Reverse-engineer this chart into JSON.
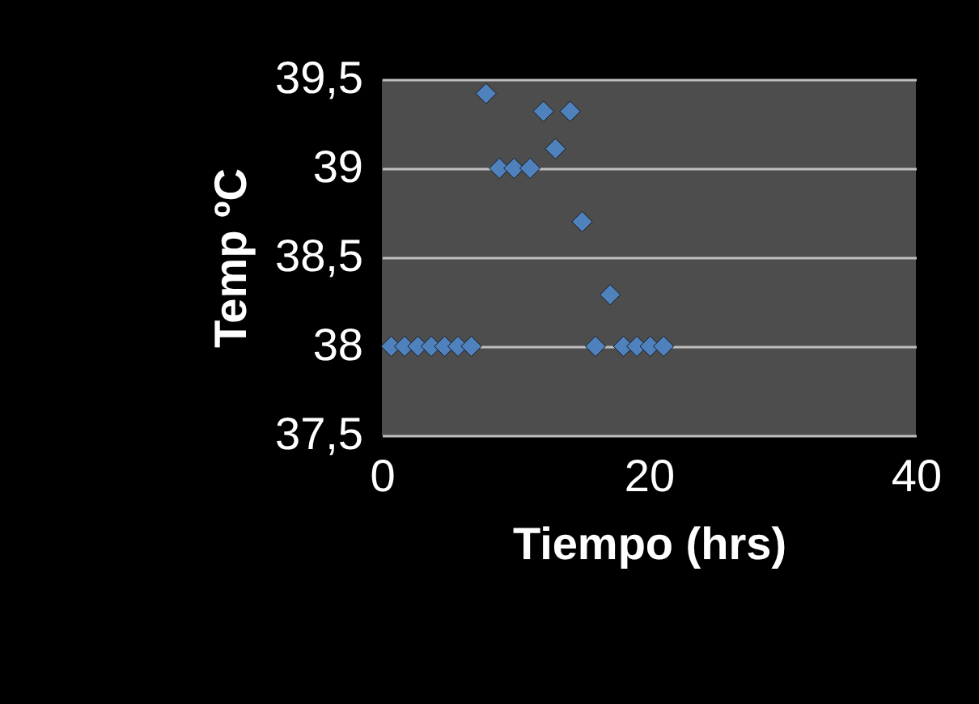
{
  "chart_data": {
    "type": "scatter",
    "xlabel": "Tiempo (hrs)",
    "ylabel": "Temp ºC",
    "x": [
      0.7,
      1.7,
      2.7,
      3.7,
      4.7,
      5.7,
      6.7,
      7.8,
      8.8,
      9.9,
      11.1,
      12.1,
      13.0,
      14.1,
      15.0,
      16.0,
      17.1,
      18.1,
      19.1,
      20.1,
      21.1
    ],
    "series": [
      {
        "color": "#4f81bd",
        "values": [
          38.0,
          38.0,
          38.0,
          38.0,
          38.0,
          38.0,
          38.0,
          39.42,
          39.0,
          39.0,
          39.0,
          39.32,
          39.11,
          39.32,
          38.7,
          38.0,
          38.29,
          38.0,
          38.0,
          38.0,
          38.0
        ]
      }
    ],
    "marker": "diamond",
    "xlim": [
      0,
      40
    ],
    "xticks": [
      0,
      20,
      40
    ],
    "ylim": [
      37.5,
      39.5
    ],
    "yticks": [
      {
        "value": 37.5,
        "label": "37,5"
      },
      38,
      {
        "value": 38.5,
        "label": "38,5"
      },
      39,
      {
        "value": 39.5,
        "label": "39,5"
      }
    ],
    "grid": "y"
  }
}
